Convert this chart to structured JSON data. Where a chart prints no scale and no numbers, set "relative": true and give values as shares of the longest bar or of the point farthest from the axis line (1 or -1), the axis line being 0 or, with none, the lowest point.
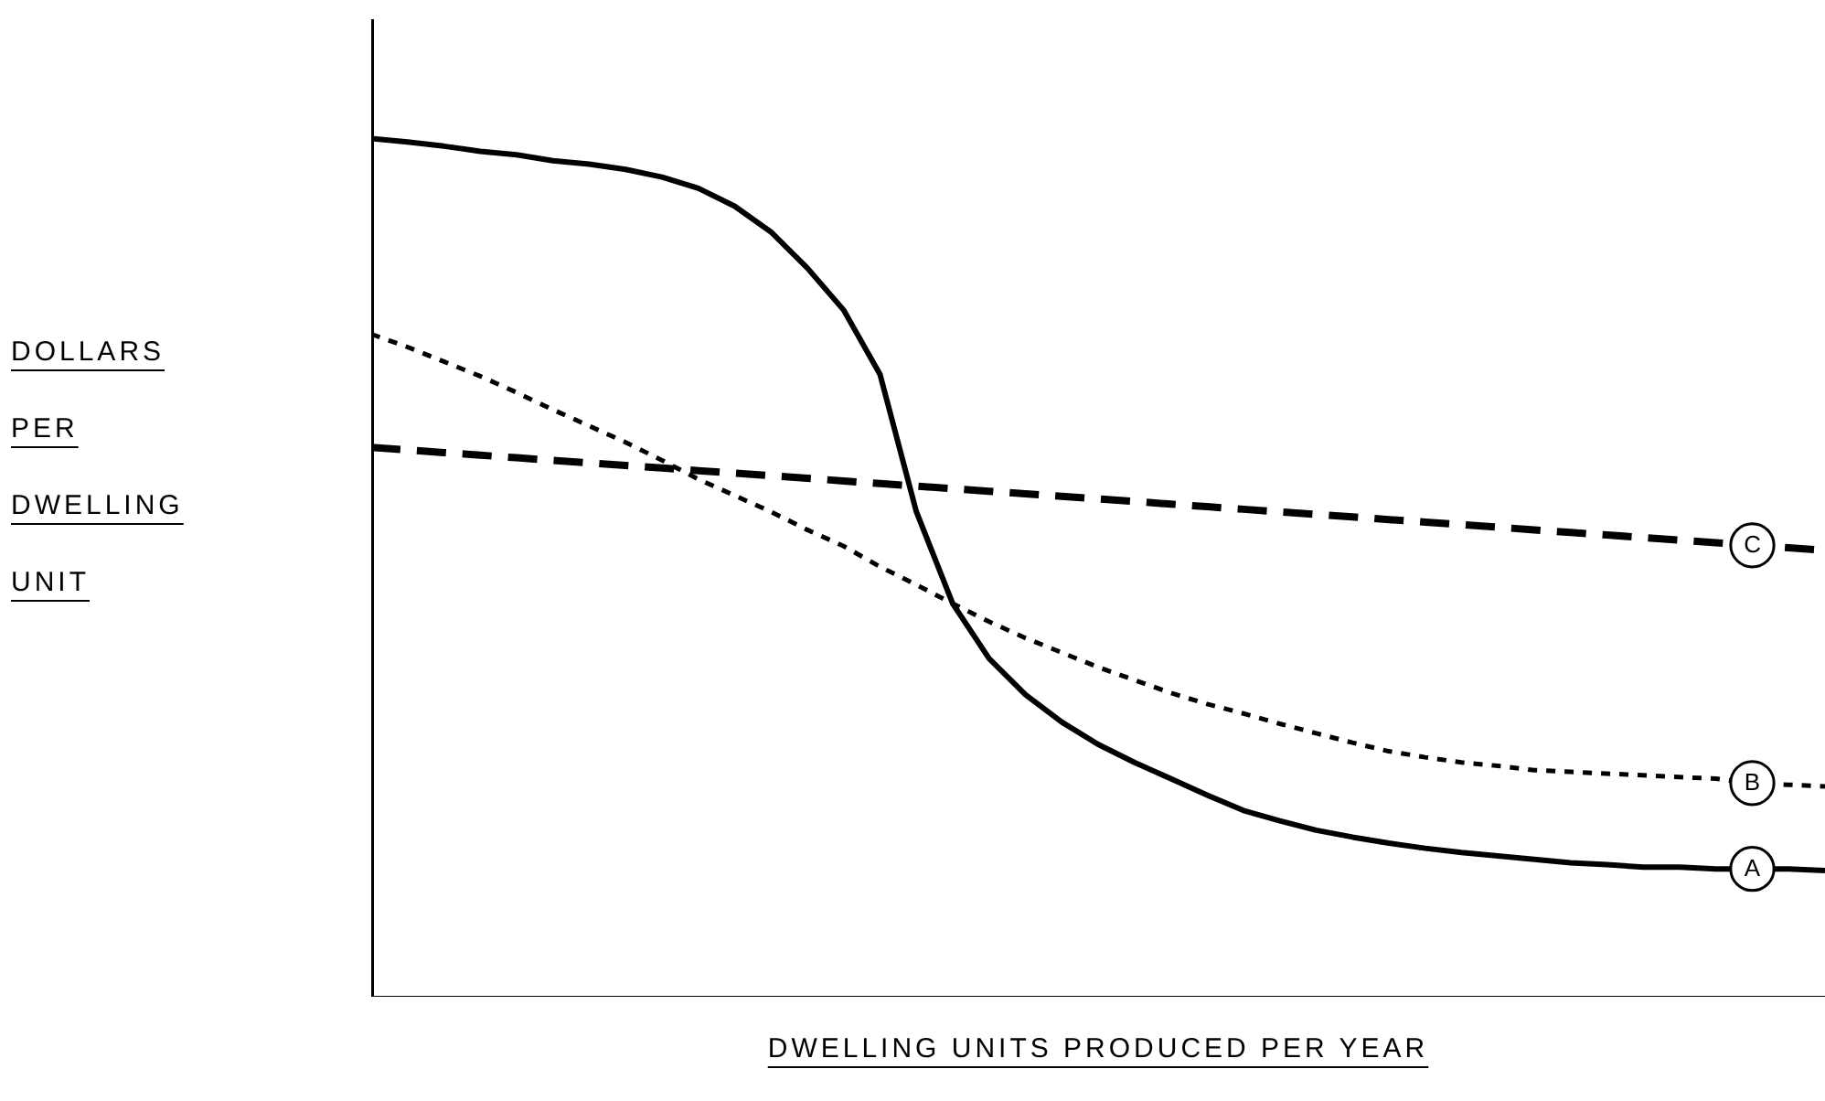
{
  "chart_data": {
    "type": "line",
    "relative": true,
    "xlabel": "DWELLING UNITS PRODUCED PER YEAR",
    "ylabel": "DOLLARS PER DWELLING UNIT",
    "grid": false,
    "marker": "none",
    "categories": [
      null,
      null,
      null,
      null,
      null,
      null,
      null,
      null,
      null,
      null,
      null,
      null,
      null,
      null,
      null,
      null,
      null,
      null,
      null,
      null,
      null,
      null,
      null,
      null,
      null,
      null,
      null,
      null,
      null,
      null,
      null,
      null,
      null,
      null,
      null,
      null,
      null,
      null,
      null,
      null,
      null
    ],
    "series": [
      {
        "name": "A",
        "color": "#000000",
        "line_style": "solid",
        "values": [
          1.0,
          0.996,
          0.991,
          0.985,
          0.981,
          0.974,
          0.97,
          0.964,
          0.955,
          0.942,
          0.921,
          0.891,
          0.849,
          0.8,
          0.725,
          0.565,
          0.458,
          0.394,
          0.352,
          0.32,
          0.294,
          0.273,
          0.254,
          0.235,
          0.217,
          0.205,
          0.194,
          0.186,
          0.179,
          0.173,
          0.168,
          0.164,
          0.16,
          0.156,
          0.154,
          0.151,
          0.151,
          0.149,
          0.149,
          0.149,
          0.147
        ]
      },
      {
        "name": "B",
        "color": "#000000",
        "line_style": "dotted",
        "values": [
          0.772,
          0.757,
          0.74,
          0.723,
          0.704,
          0.684,
          0.665,
          0.646,
          0.625,
          0.603,
          0.584,
          0.565,
          0.544,
          0.525,
          0.501,
          0.48,
          0.458,
          0.437,
          0.418,
          0.401,
          0.384,
          0.369,
          0.354,
          0.341,
          0.33,
          0.318,
          0.307,
          0.296,
          0.286,
          0.279,
          0.273,
          0.269,
          0.264,
          0.262,
          0.26,
          0.258,
          0.256,
          0.254,
          0.249,
          0.247,
          0.245
        ]
      },
      {
        "name": "C",
        "color": "#000000",
        "line_style": "dashed",
        "values": [
          0.64,
          0.637,
          0.634,
          0.631,
          0.628,
          0.625,
          0.622,
          0.619,
          0.616,
          0.613,
          0.61,
          0.607,
          0.604,
          0.601,
          0.598,
          0.595,
          0.592,
          0.589,
          0.586,
          0.583,
          0.58,
          0.577,
          0.574,
          0.571,
          0.568,
          0.565,
          0.562,
          0.559,
          0.556,
          0.553,
          0.55,
          0.547,
          0.544,
          0.541,
          0.538,
          0.535,
          0.532,
          0.529,
          0.526,
          0.523,
          0.52
        ]
      }
    ]
  }
}
